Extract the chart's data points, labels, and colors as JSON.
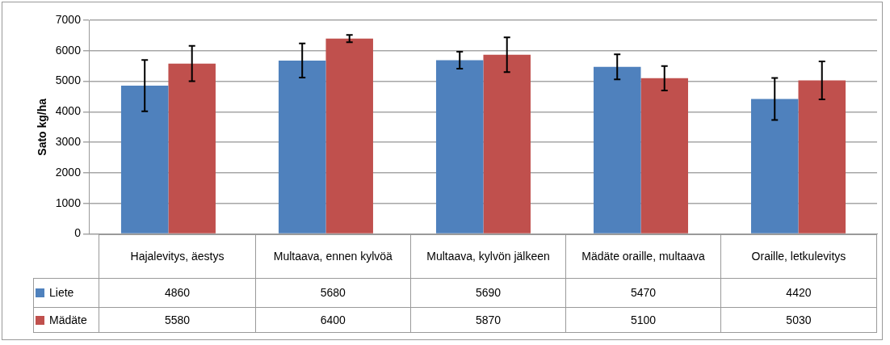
{
  "chart_data": {
    "type": "bar",
    "ylabel": "Sato kg/ha",
    "categories": [
      "Hajalevitys, äestys",
      "Multaava, ennen kylvöä",
      "Multaava, kylvön jälkeen",
      "Mädäte oraille, multaava",
      "Oraille, letkulevitys"
    ],
    "series": [
      {
        "name": "Liete",
        "color": "#4f81bd",
        "values": [
          4860,
          5680,
          5690,
          5470,
          4420
        ],
        "errors": [
          840,
          560,
          280,
          410,
          690
        ]
      },
      {
        "name": "Mädäte",
        "color": "#c0504d",
        "values": [
          5580,
          6400,
          5870,
          5100,
          5030
        ],
        "errors": [
          580,
          120,
          570,
          400,
          620
        ]
      }
    ],
    "ylim": [
      0,
      7000
    ],
    "yticks": [
      0,
      1000,
      2000,
      3000,
      4000,
      5000,
      6000,
      7000
    ],
    "grid": "y",
    "legend": "bottom left",
    "data_labels": true
  }
}
